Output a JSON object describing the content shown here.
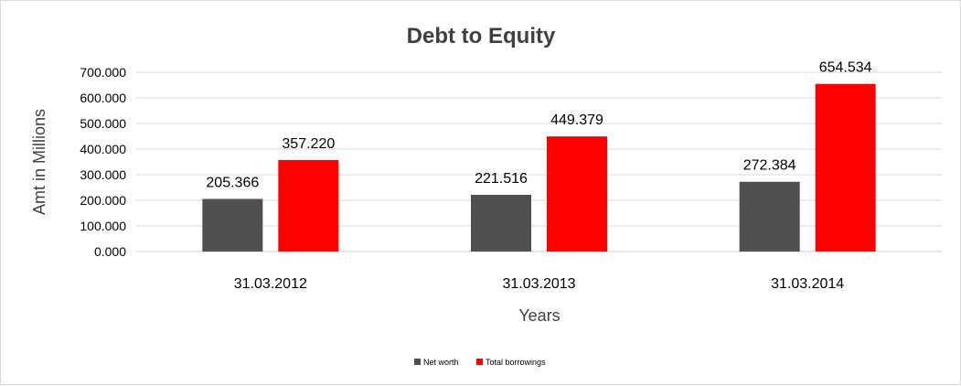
{
  "chart_data": {
    "type": "bar",
    "title": "Debt to Equity",
    "xlabel": "Years",
    "ylabel": "Amt in Millions",
    "categories": [
      "31.03.2012",
      "31.03.2013",
      "31.03.2014"
    ],
    "series": [
      {
        "name": "Net worth",
        "values": [
          205.366,
          221.516,
          272.384
        ],
        "color": "#505050",
        "labels": [
          "205.366",
          "221.516",
          "272.384"
        ]
      },
      {
        "name": "Total borrowings",
        "values": [
          357.22,
          449.379,
          654.534
        ],
        "color": "#ff0000",
        "labels": [
          "357.220",
          "449.379",
          "654.534"
        ]
      }
    ],
    "ylim": [
      0,
      700
    ],
    "yticks": [
      0,
      100,
      200,
      300,
      400,
      500,
      600,
      700
    ],
    "ytick_labels": [
      "0.000",
      "100.000",
      "200.000",
      "300.000",
      "400.000",
      "500.000",
      "600.000",
      "700.000"
    ],
    "grid": true,
    "legend_position": "bottom"
  }
}
